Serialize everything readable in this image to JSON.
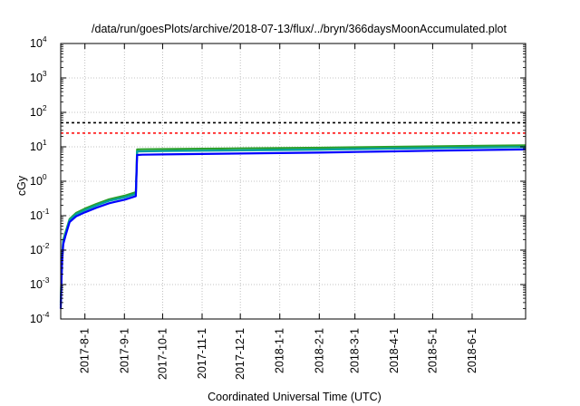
{
  "chart_data": {
    "type": "line",
    "title": "/data/run/goesPlots/archive/2018-07-13/flux/../bryn/366daysMoonAccumulated.plot",
    "xlabel": "Coordinated Universal Time (UTC)",
    "ylabel": "cGy",
    "yscale": "log",
    "ylim": [
      0.0001,
      10000
    ],
    "y_ticks": [
      {
        "base": "10",
        "exp": "-4",
        "value": 0.0001
      },
      {
        "base": "10",
        "exp": "-3",
        "value": 0.001
      },
      {
        "base": "10",
        "exp": "-2",
        "value": 0.01
      },
      {
        "base": "10",
        "exp": "-1",
        "value": 0.1
      },
      {
        "base": "10",
        "exp": "0",
        "value": 1
      },
      {
        "base": "10",
        "exp": "1",
        "value": 10
      },
      {
        "base": "10",
        "exp": "2",
        "value": 100
      },
      {
        "base": "10",
        "exp": "3",
        "value": 1000
      },
      {
        "base": "10",
        "exp": "4",
        "value": 10000
      }
    ],
    "xlim": [
      "2017-07-13",
      "2018-07-13"
    ],
    "x_ticks": [
      "2017-8-1",
      "2017-9-1",
      "2017-10-1",
      "2017-11-1",
      "2017-12-1",
      "2018-1-1",
      "2018-2-1",
      "2018-3-1",
      "2018-4-1",
      "2018-5-1",
      "2018-6-1"
    ],
    "x_tick_dates": [
      "2017-08-01",
      "2017-09-01",
      "2017-10-01",
      "2017-11-01",
      "2017-12-01",
      "2018-01-01",
      "2018-02-01",
      "2018-03-01",
      "2018-04-01",
      "2018-05-01",
      "2018-06-01"
    ],
    "grid": true,
    "reference_lines": [
      {
        "y": 50,
        "color": "#000000",
        "style": "dashed"
      },
      {
        "y": 25,
        "color": "#ff0000",
        "style": "dashed"
      }
    ],
    "series": [
      {
        "color": "#2ca02c",
        "x": [
          "2017-07-13",
          "2017-07-14",
          "2017-07-15",
          "2017-07-17",
          "2017-07-20",
          "2017-07-25",
          "2017-08-01",
          "2017-08-10",
          "2017-08-20",
          "2017-09-01",
          "2017-09-10",
          "2017-09-11",
          "2017-09-15",
          "2017-10-01",
          "2017-11-01",
          "2017-12-01",
          "2018-01-01",
          "2018-02-01",
          "2018-03-01",
          "2018-04-01",
          "2018-05-01",
          "2018-06-01",
          "2018-07-13"
        ],
        "y": [
          0.0003,
          0.006,
          0.02,
          0.035,
          0.08,
          0.12,
          0.16,
          0.22,
          0.3,
          0.38,
          0.48,
          8.4,
          8.5,
          8.6,
          8.8,
          9.0,
          9.2,
          9.4,
          9.7,
          10.0,
          10.3,
          10.6,
          11.0
        ]
      },
      {
        "color": "#00a0a0",
        "x": [
          "2017-07-13",
          "2017-07-14",
          "2017-07-15",
          "2017-07-17",
          "2017-07-20",
          "2017-07-25",
          "2017-08-01",
          "2017-08-10",
          "2017-08-20",
          "2017-09-01",
          "2017-09-10",
          "2017-09-11",
          "2017-09-15",
          "2017-10-01",
          "2017-11-01",
          "2017-12-01",
          "2018-01-01",
          "2018-02-01",
          "2018-03-01",
          "2018-04-01",
          "2018-05-01",
          "2018-06-01",
          "2018-07-13"
        ],
        "y": [
          0.00025,
          0.005,
          0.018,
          0.032,
          0.075,
          0.11,
          0.145,
          0.2,
          0.27,
          0.34,
          0.43,
          7.3,
          7.4,
          7.5,
          7.7,
          7.9,
          8.1,
          8.3,
          8.6,
          8.9,
          9.2,
          9.5,
          9.9
        ]
      },
      {
        "color": "#0000ff",
        "x": [
          "2017-07-13",
          "2017-07-14",
          "2017-07-15",
          "2017-07-17",
          "2017-07-20",
          "2017-07-25",
          "2017-08-01",
          "2017-08-10",
          "2017-08-20",
          "2017-09-01",
          "2017-09-10",
          "2017-09-11",
          "2017-09-15",
          "2017-10-01",
          "2017-11-01",
          "2017-12-01",
          "2018-01-01",
          "2018-02-01",
          "2018-03-01",
          "2018-04-01",
          "2018-05-01",
          "2018-06-01",
          "2018-07-13"
        ],
        "y": [
          0.0002,
          0.004,
          0.015,
          0.028,
          0.065,
          0.095,
          0.125,
          0.17,
          0.23,
          0.29,
          0.37,
          5.8,
          5.9,
          6.0,
          6.2,
          6.4,
          6.6,
          6.8,
          7.1,
          7.4,
          7.7,
          8.0,
          8.4
        ]
      }
    ]
  }
}
